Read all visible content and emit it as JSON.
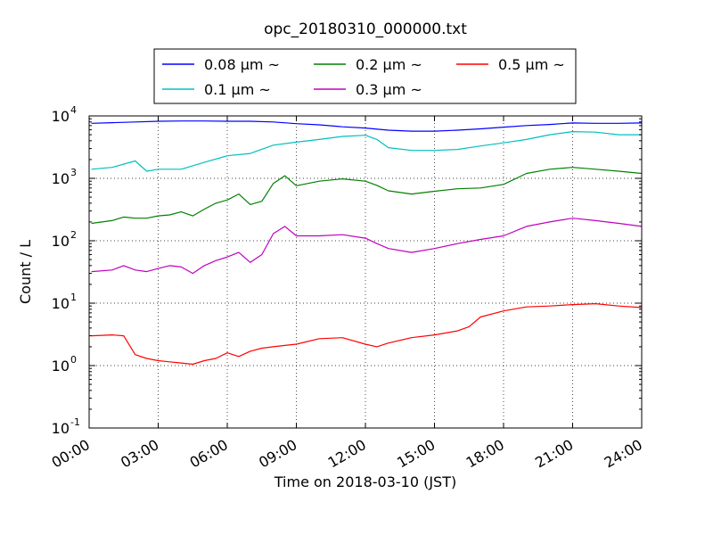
{
  "chart_data": {
    "type": "line",
    "title": "opc_20180310_000000.txt",
    "xlabel": "Time on 2018-03-10 (JST)",
    "ylabel": "Count / L",
    "xlim": [
      0,
      24
    ],
    "ylim": [
      0.1,
      10000
    ],
    "yscale": "log",
    "x_ticks": [
      0,
      3,
      6,
      9,
      12,
      15,
      18,
      21,
      24
    ],
    "x_tick_labels": [
      "00:00",
      "03:00",
      "06:00",
      "09:00",
      "12:00",
      "15:00",
      "18:00",
      "21:00",
      "24:00"
    ],
    "y_ticks": [
      0.1,
      1,
      10,
      100,
      1000,
      10000
    ],
    "y_tick_labels": [
      {
        "base": "10",
        "exp": "-1"
      },
      {
        "base": "10",
        "exp": "0"
      },
      {
        "base": "10",
        "exp": "1"
      },
      {
        "base": "10",
        "exp": "2"
      },
      {
        "base": "10",
        "exp": "3"
      },
      {
        "base": "10",
        "exp": "4"
      }
    ],
    "grid": true,
    "legend_position": "above plot",
    "series": [
      {
        "name": "0.08 μm ~",
        "color": "#0000ff",
        "x": [
          0.1,
          1,
          2,
          3,
          4,
          5,
          6,
          7,
          8,
          9,
          10,
          11,
          12,
          13,
          14,
          15,
          16,
          17,
          18,
          19,
          20,
          21,
          22,
          23,
          24
        ],
        "y": [
          7600,
          7800,
          8000,
          8200,
          8300,
          8300,
          8200,
          8200,
          8000,
          7500,
          7200,
          6700,
          6400,
          5900,
          5700,
          5700,
          5900,
          6200,
          6600,
          7000,
          7300,
          7700,
          7600,
          7600,
          7700
        ]
      },
      {
        "name": "0.1 μm ~",
        "color": "#00bfbf",
        "x": [
          0.1,
          1,
          2,
          2.5,
          3,
          4,
          5,
          6,
          7,
          8,
          9,
          10,
          11,
          12,
          12.5,
          13,
          14,
          15,
          16,
          17,
          18,
          19,
          20,
          21,
          22,
          23,
          24
        ],
        "y": [
          1400,
          1500,
          1900,
          1300,
          1400,
          1400,
          1800,
          2300,
          2500,
          3400,
          3800,
          4200,
          4700,
          4900,
          4200,
          3100,
          2800,
          2800,
          2900,
          3300,
          3700,
          4200,
          5000,
          5600,
          5500,
          5000,
          5000
        ]
      },
      {
        "name": "0.2 μm ~",
        "color": "#008000",
        "x": [
          0.1,
          1,
          1.5,
          2,
          2.5,
          3,
          3.5,
          4,
          4.5,
          5,
          5.5,
          6,
          6.5,
          7,
          7.5,
          8,
          8.5,
          9,
          10,
          11,
          12,
          12.5,
          13,
          14,
          15,
          16,
          17,
          18,
          19,
          20,
          21,
          22,
          23,
          24
        ],
        "y": [
          190,
          210,
          240,
          230,
          230,
          250,
          260,
          290,
          250,
          320,
          400,
          450,
          560,
          380,
          430,
          830,
          1100,
          760,
          900,
          980,
          900,
          770,
          630,
          560,
          620,
          680,
          700,
          800,
          1200,
          1400,
          1500,
          1400,
          1300,
          1200
        ]
      },
      {
        "name": "0.3 μm ~",
        "color": "#bf00bf",
        "x": [
          0.1,
          1,
          1.5,
          2,
          2.5,
          3,
          3.5,
          4,
          4.5,
          5,
          5.5,
          6,
          6.5,
          7,
          7.5,
          8,
          8.5,
          9,
          10,
          11,
          12,
          12.5,
          13,
          14,
          15,
          16,
          17,
          18,
          19,
          20,
          21,
          22,
          23,
          24
        ],
        "y": [
          32,
          34,
          40,
          34,
          32,
          36,
          40,
          38,
          30,
          40,
          48,
          55,
          65,
          45,
          60,
          130,
          170,
          120,
          120,
          125,
          110,
          90,
          75,
          65,
          75,
          90,
          105,
          120,
          170,
          200,
          230,
          210,
          190,
          170
        ]
      },
      {
        "name": "0.5 μm ~",
        "color": "#ff0000",
        "x": [
          0.1,
          1,
          1.5,
          2,
          2.5,
          3,
          3.5,
          4,
          4.5,
          5,
          5.5,
          6,
          6.5,
          7,
          7.5,
          8,
          8.5,
          9,
          10,
          11,
          12,
          12.5,
          13,
          14,
          15,
          16,
          16.5,
          17,
          18,
          19,
          20,
          21,
          22,
          23,
          24
        ],
        "y": [
          3,
          3.1,
          3,
          1.5,
          1.3,
          1.2,
          1.15,
          1.1,
          1.05,
          1.2,
          1.3,
          1.6,
          1.4,
          1.7,
          1.9,
          2,
          2.1,
          2.2,
          2.7,
          2.8,
          2.2,
          2,
          2.3,
          2.8,
          3.1,
          3.6,
          4.2,
          6,
          7.5,
          8.7,
          9,
          9.5,
          9.8,
          9,
          8.5
        ]
      }
    ]
  }
}
